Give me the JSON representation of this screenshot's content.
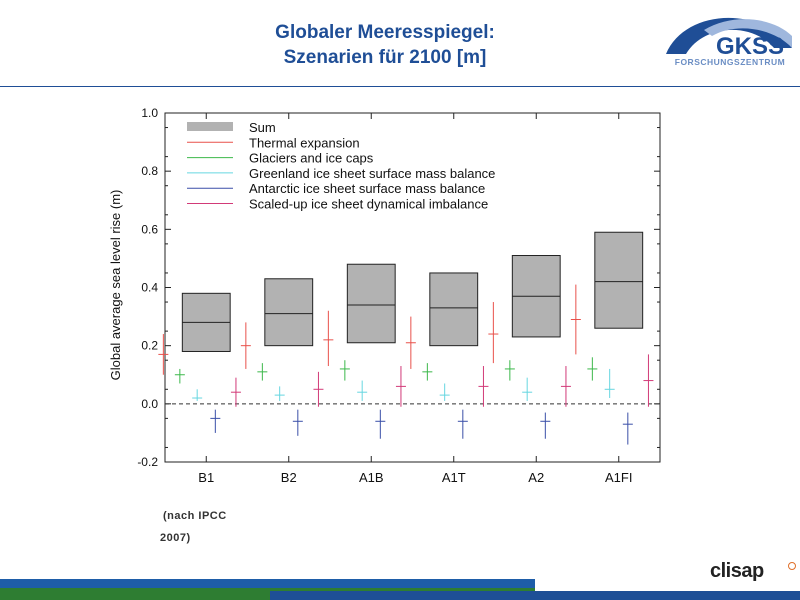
{
  "header": {
    "title_line1": "Globaler Meeresspiegel:",
    "title_line2": "Szenarien für 2100 [m]"
  },
  "logo": {
    "name": "GKSS",
    "subtitle": "FORSCHUNGSZENTRUM"
  },
  "source": {
    "line1": "(nach IPCC",
    "line2": "2007)"
  },
  "footer": {
    "brand": "clisap"
  },
  "colors": {
    "title": "#1f4e96",
    "sum_box": "#b2b2b2",
    "thermal": "#e8504a",
    "glaciers": "#3cb84a",
    "greenland": "#66d6e0",
    "antarctic": "#3a4fa8",
    "dynamical": "#d23a78"
  },
  "chart_data": {
    "type": "box",
    "title": "",
    "xlabel": "",
    "ylabel": "Global average sea level rise (m)",
    "ylim": [
      -0.2,
      1.0
    ],
    "yticks": [
      "1.0",
      "0.8",
      "0.6",
      "0.4",
      "0.2",
      "0.0",
      "-0.2"
    ],
    "categories": [
      "B1",
      "B2",
      "A1B",
      "A1T",
      "A2",
      "A1FI"
    ],
    "zero_line": "dashed",
    "legend_position": "top-left",
    "legend": [
      {
        "label": "Sum",
        "key": "sum"
      },
      {
        "label": "Thermal expansion",
        "key": "thermal"
      },
      {
        "label": "Glaciers and ice caps",
        "key": "glaciers"
      },
      {
        "label": "Greenland ice sheet surface mass balance",
        "key": "greenland"
      },
      {
        "label": "Antarctic ice sheet surface mass balance",
        "key": "antarctic"
      },
      {
        "label": "Scaled-up ice sheet dynamical imbalance",
        "key": "dynamical"
      }
    ],
    "sum": [
      {
        "low": 0.18,
        "mid": 0.28,
        "high": 0.38
      },
      {
        "low": 0.2,
        "mid": 0.31,
        "high": 0.43
      },
      {
        "low": 0.21,
        "mid": 0.34,
        "high": 0.48
      },
      {
        "low": 0.2,
        "mid": 0.33,
        "high": 0.45
      },
      {
        "low": 0.23,
        "mid": 0.37,
        "high": 0.51
      },
      {
        "low": 0.26,
        "mid": 0.42,
        "high": 0.59
      }
    ],
    "components": [
      {
        "key": "thermal",
        "values": [
          {
            "low": 0.1,
            "mid": 0.17,
            "high": 0.24
          },
          {
            "low": 0.12,
            "mid": 0.2,
            "high": 0.28
          },
          {
            "low": 0.13,
            "mid": 0.22,
            "high": 0.32
          },
          {
            "low": 0.12,
            "mid": 0.21,
            "high": 0.3
          },
          {
            "low": 0.14,
            "mid": 0.24,
            "high": 0.35
          },
          {
            "low": 0.17,
            "mid": 0.29,
            "high": 0.41
          }
        ]
      },
      {
        "key": "glaciers",
        "values": [
          {
            "low": 0.07,
            "mid": 0.1,
            "high": 0.12
          },
          {
            "low": 0.08,
            "mid": 0.11,
            "high": 0.14
          },
          {
            "low": 0.08,
            "mid": 0.12,
            "high": 0.15
          },
          {
            "low": 0.08,
            "mid": 0.11,
            "high": 0.14
          },
          {
            "low": 0.08,
            "mid": 0.12,
            "high": 0.15
          },
          {
            "low": 0.08,
            "mid": 0.12,
            "high": 0.16
          }
        ]
      },
      {
        "key": "greenland",
        "values": [
          {
            "low": 0.01,
            "mid": 0.02,
            "high": 0.05
          },
          {
            "low": 0.01,
            "mid": 0.03,
            "high": 0.06
          },
          {
            "low": 0.01,
            "mid": 0.04,
            "high": 0.08
          },
          {
            "low": 0.01,
            "mid": 0.03,
            "high": 0.07
          },
          {
            "low": 0.01,
            "mid": 0.04,
            "high": 0.09
          },
          {
            "low": 0.02,
            "mid": 0.05,
            "high": 0.12
          }
        ]
      },
      {
        "key": "antarctic",
        "values": [
          {
            "low": -0.1,
            "mid": -0.05,
            "high": -0.02
          },
          {
            "low": -0.11,
            "mid": -0.06,
            "high": -0.02
          },
          {
            "low": -0.12,
            "mid": -0.06,
            "high": -0.02
          },
          {
            "low": -0.12,
            "mid": -0.06,
            "high": -0.02
          },
          {
            "low": -0.12,
            "mid": -0.06,
            "high": -0.03
          },
          {
            "low": -0.14,
            "mid": -0.07,
            "high": -0.03
          }
        ]
      },
      {
        "key": "dynamical",
        "values": [
          {
            "low": -0.01,
            "mid": 0.04,
            "high": 0.09
          },
          {
            "low": -0.01,
            "mid": 0.05,
            "high": 0.11
          },
          {
            "low": -0.01,
            "mid": 0.06,
            "high": 0.13
          },
          {
            "low": -0.01,
            "mid": 0.06,
            "high": 0.13
          },
          {
            "low": -0.01,
            "mid": 0.06,
            "high": 0.13
          },
          {
            "low": -0.01,
            "mid": 0.08,
            "high": 0.17
          }
        ]
      }
    ]
  }
}
